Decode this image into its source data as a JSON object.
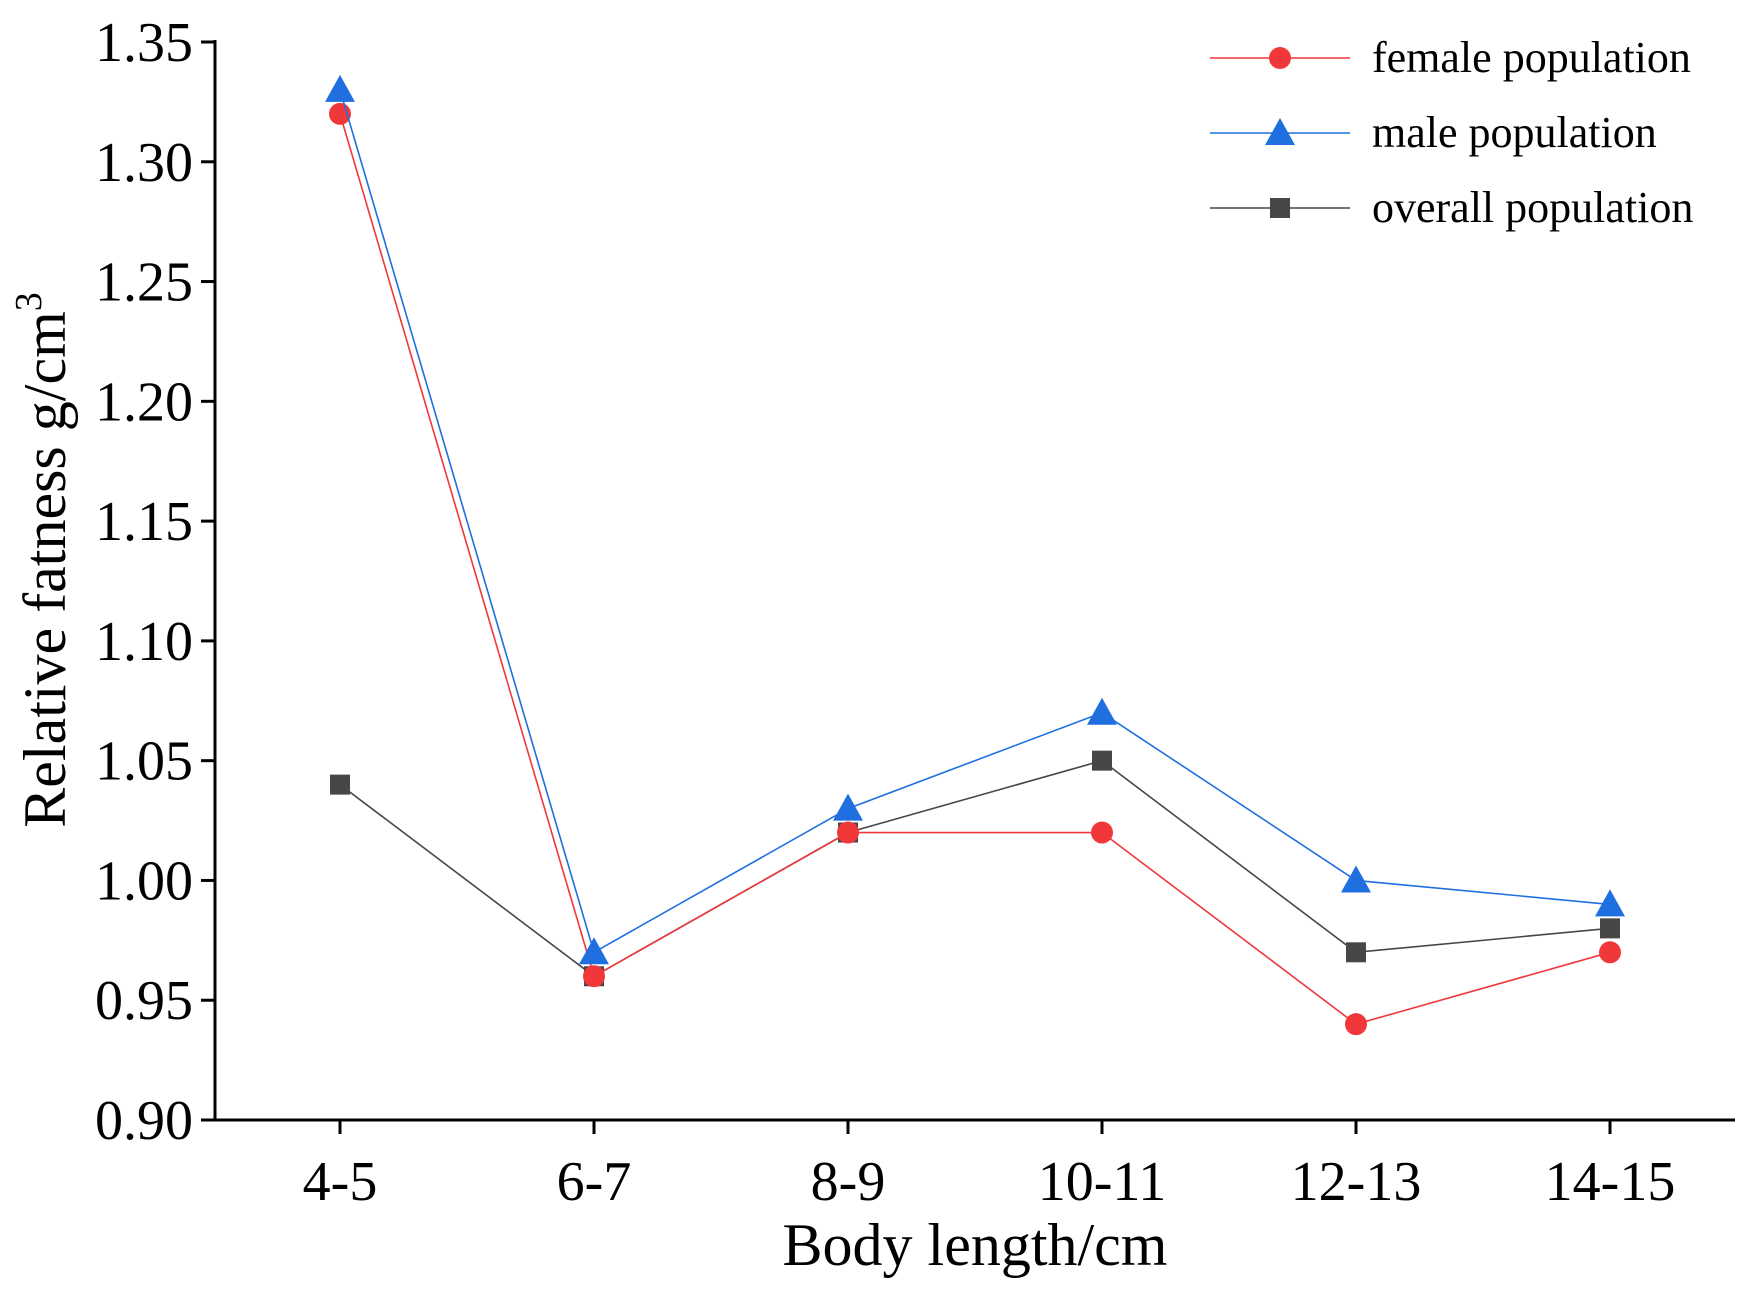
{
  "chart_data": {
    "type": "line",
    "xlabel": "Body length/cm",
    "ylabel": "Relative fatness g/cm",
    "ylabel_superscript": "3",
    "categories": [
      "4-5",
      "6-7",
      "8-9",
      "10-11",
      "12-13",
      "14-15"
    ],
    "ylim": [
      0.9,
      1.35
    ],
    "yticks": [
      "0.90",
      "0.95",
      "1.00",
      "1.05",
      "1.10",
      "1.15",
      "1.20",
      "1.25",
      "1.30",
      "1.35"
    ],
    "grid": false,
    "legend_position": "top-right",
    "series": [
      {
        "name": "female population",
        "marker": "circle",
        "color": "#f0373a",
        "values": [
          1.32,
          0.96,
          1.02,
          1.02,
          0.94,
          0.97
        ]
      },
      {
        "name": "male population",
        "marker": "triangle",
        "color": "#1f6fe0",
        "values": [
          1.33,
          0.97,
          1.03,
          1.07,
          1.0,
          0.99
        ]
      },
      {
        "name": "overall population",
        "marker": "square",
        "color": "#474747",
        "values": [
          1.04,
          0.96,
          1.02,
          1.05,
          0.97,
          0.98
        ]
      }
    ]
  }
}
